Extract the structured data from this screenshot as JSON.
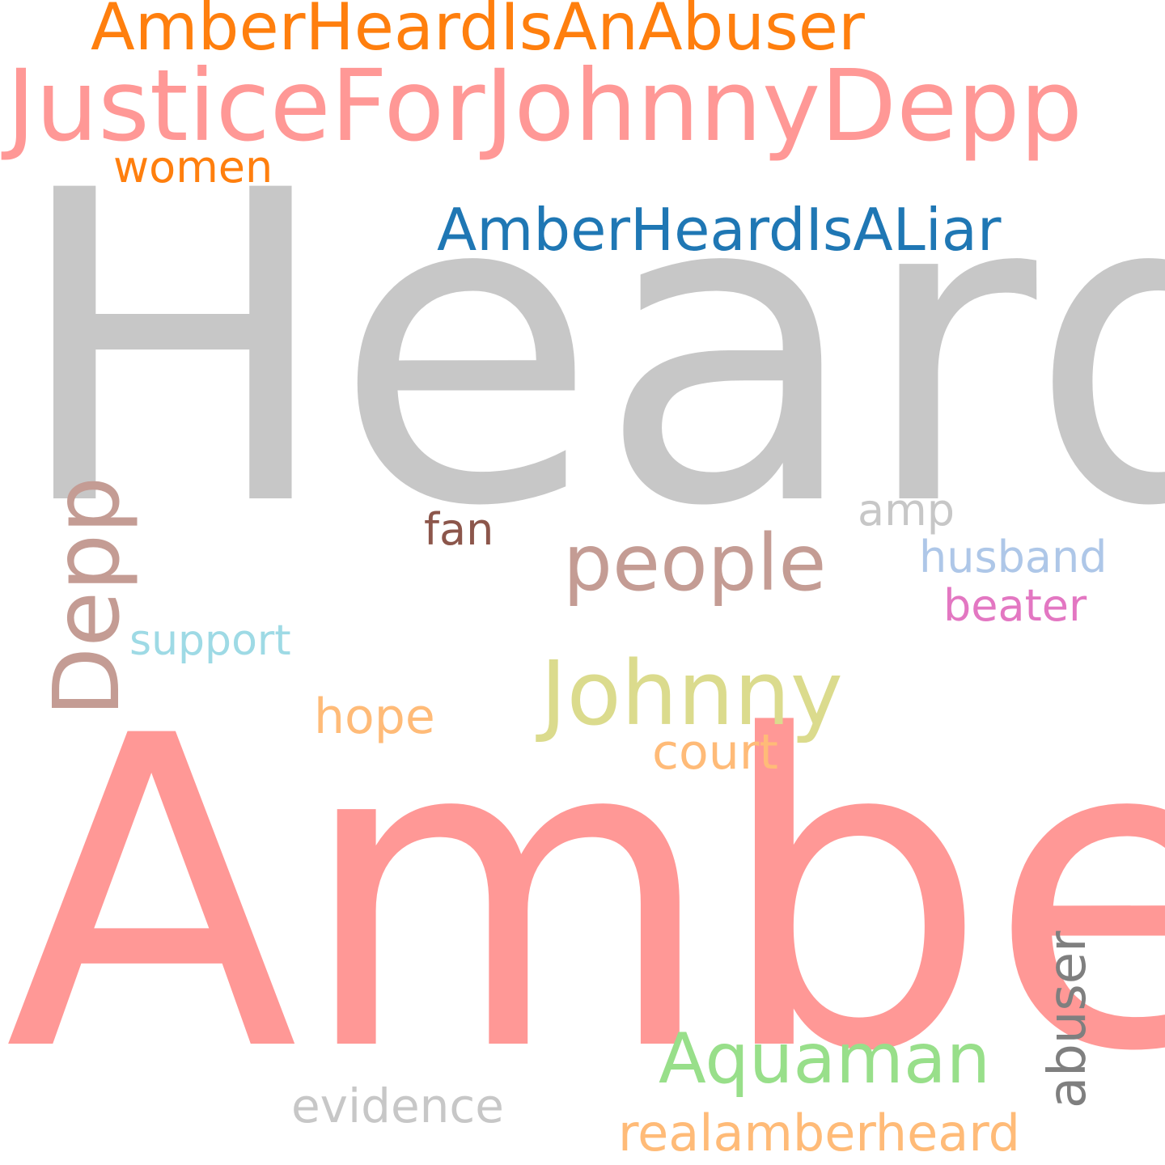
{
  "words": {
    "amber": {
      "text": "Amber",
      "color": "#ff9896"
    },
    "heard": {
      "text": "Heard",
      "color": "#c7c7c7"
    },
    "justice": {
      "text": "JusticeForJohnnyDepp",
      "color": "#ff9896"
    },
    "abuser_tag": {
      "text": "AmberHeardIsAnAbuser",
      "color": "#ff7f0e"
    },
    "liar_tag": {
      "text": "AmberHeardIsALiar",
      "color": "#1f77b4"
    },
    "women": {
      "text": "women",
      "color": "#ff7f0e"
    },
    "depp": {
      "text": "Depp",
      "color": "#c49c94"
    },
    "people": {
      "text": "people",
      "color": "#c49c94"
    },
    "johnny": {
      "text": "Johnny",
      "color": "#dbdb8d"
    },
    "fan": {
      "text": "fan",
      "color": "#8c564b"
    },
    "amp": {
      "text": "amp",
      "color": "#c7c7c7"
    },
    "husband": {
      "text": "husband",
      "color": "#aec7e8"
    },
    "beater": {
      "text": "beater",
      "color": "#e377c2"
    },
    "support": {
      "text": "support",
      "color": "#9edae5"
    },
    "hope": {
      "text": "hope",
      "color": "#ffbb78"
    },
    "court": {
      "text": "court",
      "color": "#ffbb78"
    },
    "aquaman": {
      "text": "Aquaman",
      "color": "#98df8a"
    },
    "abuser": {
      "text": "abuser",
      "color": "#7f7f7f"
    },
    "evidence": {
      "text": "evidence",
      "color": "#c7c7c7"
    },
    "realamberheard": {
      "text": "realamberheard",
      "color": "#ffbb78"
    }
  }
}
